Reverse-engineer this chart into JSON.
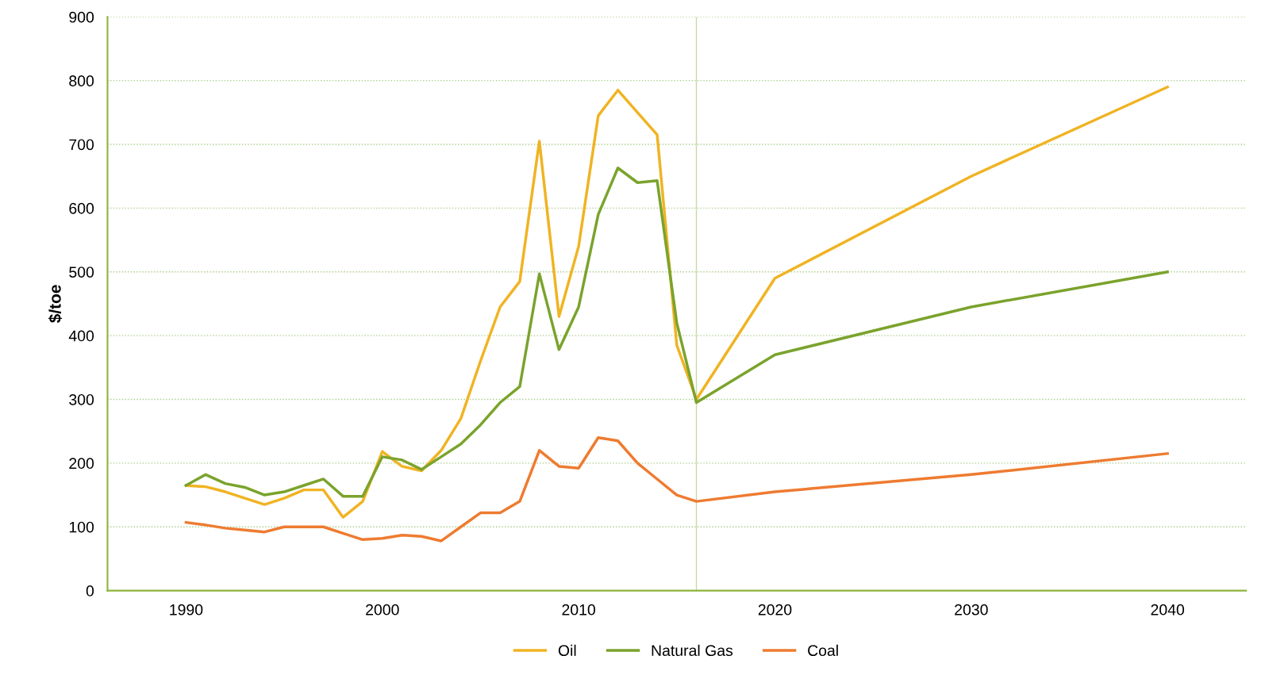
{
  "chart_data": {
    "type": "line",
    "ylabel": "$/toe",
    "x": [
      1990,
      1991,
      1992,
      1993,
      1994,
      1995,
      1996,
      1997,
      1998,
      1999,
      2000,
      2001,
      2002,
      2003,
      2004,
      2005,
      2006,
      2007,
      2008,
      2009,
      2010,
      2011,
      2012,
      2013,
      2014,
      2015,
      2016,
      2020,
      2030,
      2040
    ],
    "series": [
      {
        "name": "Oil",
        "color": "#f0b323",
        "values": [
          165,
          163,
          155,
          145,
          135,
          145,
          158,
          158,
          115,
          140,
          218,
          195,
          188,
          220,
          270,
          360,
          445,
          485,
          705,
          430,
          540,
          745,
          785,
          750,
          715,
          385,
          300,
          490,
          650,
          790
        ]
      },
      {
        "name": "Natural Gas",
        "color": "#7aa32c",
        "values": [
          165,
          182,
          168,
          162,
          150,
          155,
          165,
          175,
          148,
          148,
          210,
          205,
          190,
          210,
          230,
          260,
          295,
          320,
          497,
          378,
          445,
          590,
          663,
          640,
          643,
          420,
          295,
          370,
          445,
          500
        ]
      },
      {
        "name": "Coal",
        "color": "#ee7b30",
        "values": [
          107,
          103,
          98,
          95,
          92,
          100,
          100,
          100,
          90,
          80,
          82,
          87,
          85,
          78,
          100,
          122,
          122,
          140,
          220,
          195,
          192,
          240,
          235,
          200,
          175,
          150,
          140,
          155,
          182,
          215
        ]
      }
    ],
    "xlim": [
      1986,
      2044
    ],
    "xticks": [
      1990,
      2000,
      2010,
      2020,
      2030,
      2040
    ],
    "ylim": [
      0,
      900
    ],
    "yticks": [
      0,
      100,
      200,
      300,
      400,
      500,
      600,
      700,
      800,
      900
    ],
    "ref_lines": [
      {
        "axis": "x",
        "value": 2016,
        "color": "#c8d8a8"
      }
    ],
    "grid": "y",
    "legend": "bottom",
    "marker": "none",
    "line_style": "solid"
  }
}
